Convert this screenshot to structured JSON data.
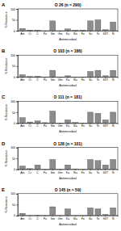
{
  "chart_data": [
    {
      "type": "bar",
      "title": "O 26 (n = 290)",
      "annotations": [
        "A"
      ],
      "x_label": "Antimicrobial",
      "y_label": "% Resistance",
      "categories": [
        "Am",
        "Cr",
        "C",
        "Fu",
        "Sm",
        "Gm",
        "Ka",
        "Na",
        "Fo",
        "Su",
        "Te",
        "SXT",
        "N"
      ],
      "values": [
        10,
        3,
        2,
        0,
        45,
        0,
        8,
        1,
        2,
        45,
        50,
        5,
        40
      ],
      "color": "#8c8c8c",
      "ylim": [
        0,
        100
      ],
      "yticks": [
        0,
        50,
        100
      ],
      "grid": false
    },
    {
      "type": "bar",
      "title": "O 103 (n = 186)",
      "annotations": [
        "B"
      ],
      "x_label": "Antimicrobial",
      "y_label": "% Resistance",
      "categories": [
        "Am",
        "Cr",
        "C",
        "Fu",
        "Sm",
        "Gm",
        "Ka",
        "Na",
        "Fo",
        "Su",
        "Te",
        "SXT",
        "N"
      ],
      "values": [
        10,
        2,
        3,
        0,
        30,
        0,
        5,
        0,
        0,
        25,
        30,
        5,
        30
      ],
      "color": "#8c8c8c",
      "ylim": [
        0,
        100
      ],
      "yticks": [
        0,
        50,
        100
      ],
      "grid": false
    },
    {
      "type": "bar",
      "title": "O 111 (n = 181)",
      "annotations": [
        "C"
      ],
      "x_label": "Antimicrobial",
      "y_label": "% Resistance",
      "categories": [
        "Am",
        "Cr",
        "C",
        "Fu",
        "Sm",
        "Gm",
        "Ka",
        "Na",
        "Fo",
        "Su",
        "Te",
        "SXT",
        "N"
      ],
      "values": [
        25,
        5,
        10,
        2,
        55,
        1,
        15,
        3,
        1,
        50,
        45,
        15,
        50
      ],
      "color": "#8c8c8c",
      "ylim": [
        0,
        100
      ],
      "yticks": [
        0,
        50,
        100
      ],
      "grid": false
    },
    {
      "type": "bar",
      "title": "O 128 (n = 101)",
      "annotations": [
        "D"
      ],
      "x_label": "Antimicrobial",
      "y_label": "% Resistance",
      "categories": [
        "Am",
        "Cr",
        "C",
        "Fu",
        "Sm",
        "Gm",
        "Ka",
        "Na",
        "Fo",
        "Su",
        "Te",
        "SXT",
        "N"
      ],
      "values": [
        15,
        3,
        20,
        0,
        45,
        0,
        20,
        2,
        0,
        45,
        40,
        20,
        45
      ],
      "color": "#8c8c8c",
      "ylim": [
        0,
        100
      ],
      "yticks": [
        0,
        50,
        100
      ],
      "grid": false
    },
    {
      "type": "bar",
      "title": "O 145 (n = 59)",
      "annotations": [
        "E"
      ],
      "x_label": "Antimicrobial",
      "y_label": "% Resistance",
      "categories": [
        "Am",
        "Cr",
        "C",
        "Fu",
        "Sm",
        "Gm",
        "Ka",
        "Na",
        "Fo",
        "Su",
        "Te",
        "SXT",
        "N"
      ],
      "values": [
        10,
        0,
        2,
        0,
        40,
        0,
        30,
        0,
        0,
        35,
        30,
        5,
        35
      ],
      "color": "#8c8c8c",
      "ylim": [
        0,
        100
      ],
      "yticks": [
        0,
        50,
        100
      ],
      "grid": false
    }
  ]
}
